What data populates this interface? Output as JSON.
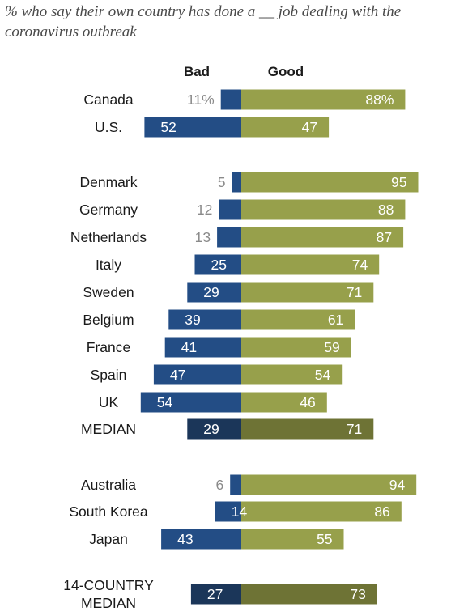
{
  "subtitle": "% who say their own country has done a __ job dealing with the coronavirus outbreak",
  "legend": {
    "bad": "Bad",
    "good": "Good"
  },
  "colors": {
    "bad": "#234d85",
    "good": "#97a04b",
    "bad_median": "#1b3659",
    "good_median": "#6e7335",
    "outside_label": "#8a8a8a"
  },
  "chart_data": {
    "type": "bar",
    "orientation": "horizontal-diverging",
    "legend_position": "top",
    "grid": false,
    "categories": [
      "Canada",
      "U.S.",
      "Denmark",
      "Germany",
      "Netherlands",
      "Italy",
      "Sweden",
      "Belgium",
      "France",
      "Spain",
      "UK",
      "MEDIAN",
      "Australia",
      "South Korea",
      "Japan",
      "14-COUNTRY MEDIAN"
    ],
    "series": [
      {
        "name": "Bad",
        "values": [
          11,
          52,
          5,
          12,
          13,
          25,
          29,
          39,
          41,
          47,
          54,
          29,
          6,
          14,
          43,
          27
        ]
      },
      {
        "name": "Good",
        "values": [
          88,
          47,
          95,
          88,
          87,
          74,
          71,
          61,
          59,
          54,
          46,
          71,
          94,
          86,
          55,
          73
        ]
      }
    ],
    "value_labels": {
      "bad": [
        "11%",
        "52",
        "5",
        "12",
        "13",
        "25",
        "29",
        "39",
        "41",
        "47",
        "54",
        "29",
        "6",
        "14",
        "43",
        "27"
      ],
      "good": [
        "88%",
        "47",
        "95",
        "88",
        "87",
        "74",
        "71",
        "61",
        "59",
        "54",
        "46",
        "71",
        "94",
        "86",
        "55",
        "73"
      ]
    },
    "category_lines": [
      [
        "Canada"
      ],
      [
        "U.S."
      ],
      [
        "Denmark"
      ],
      [
        "Germany"
      ],
      [
        "Netherlands"
      ],
      [
        "Italy"
      ],
      [
        "Sweden"
      ],
      [
        "Belgium"
      ],
      [
        "France"
      ],
      [
        "Spain"
      ],
      [
        "UK"
      ],
      [
        "MEDIAN"
      ],
      [
        "Australia"
      ],
      [
        "South Korea"
      ],
      [
        "Japan"
      ],
      [
        "14-COUNTRY",
        "MEDIAN"
      ]
    ],
    "medians": [
      "MEDIAN",
      "14-COUNTRY MEDIAN"
    ]
  }
}
